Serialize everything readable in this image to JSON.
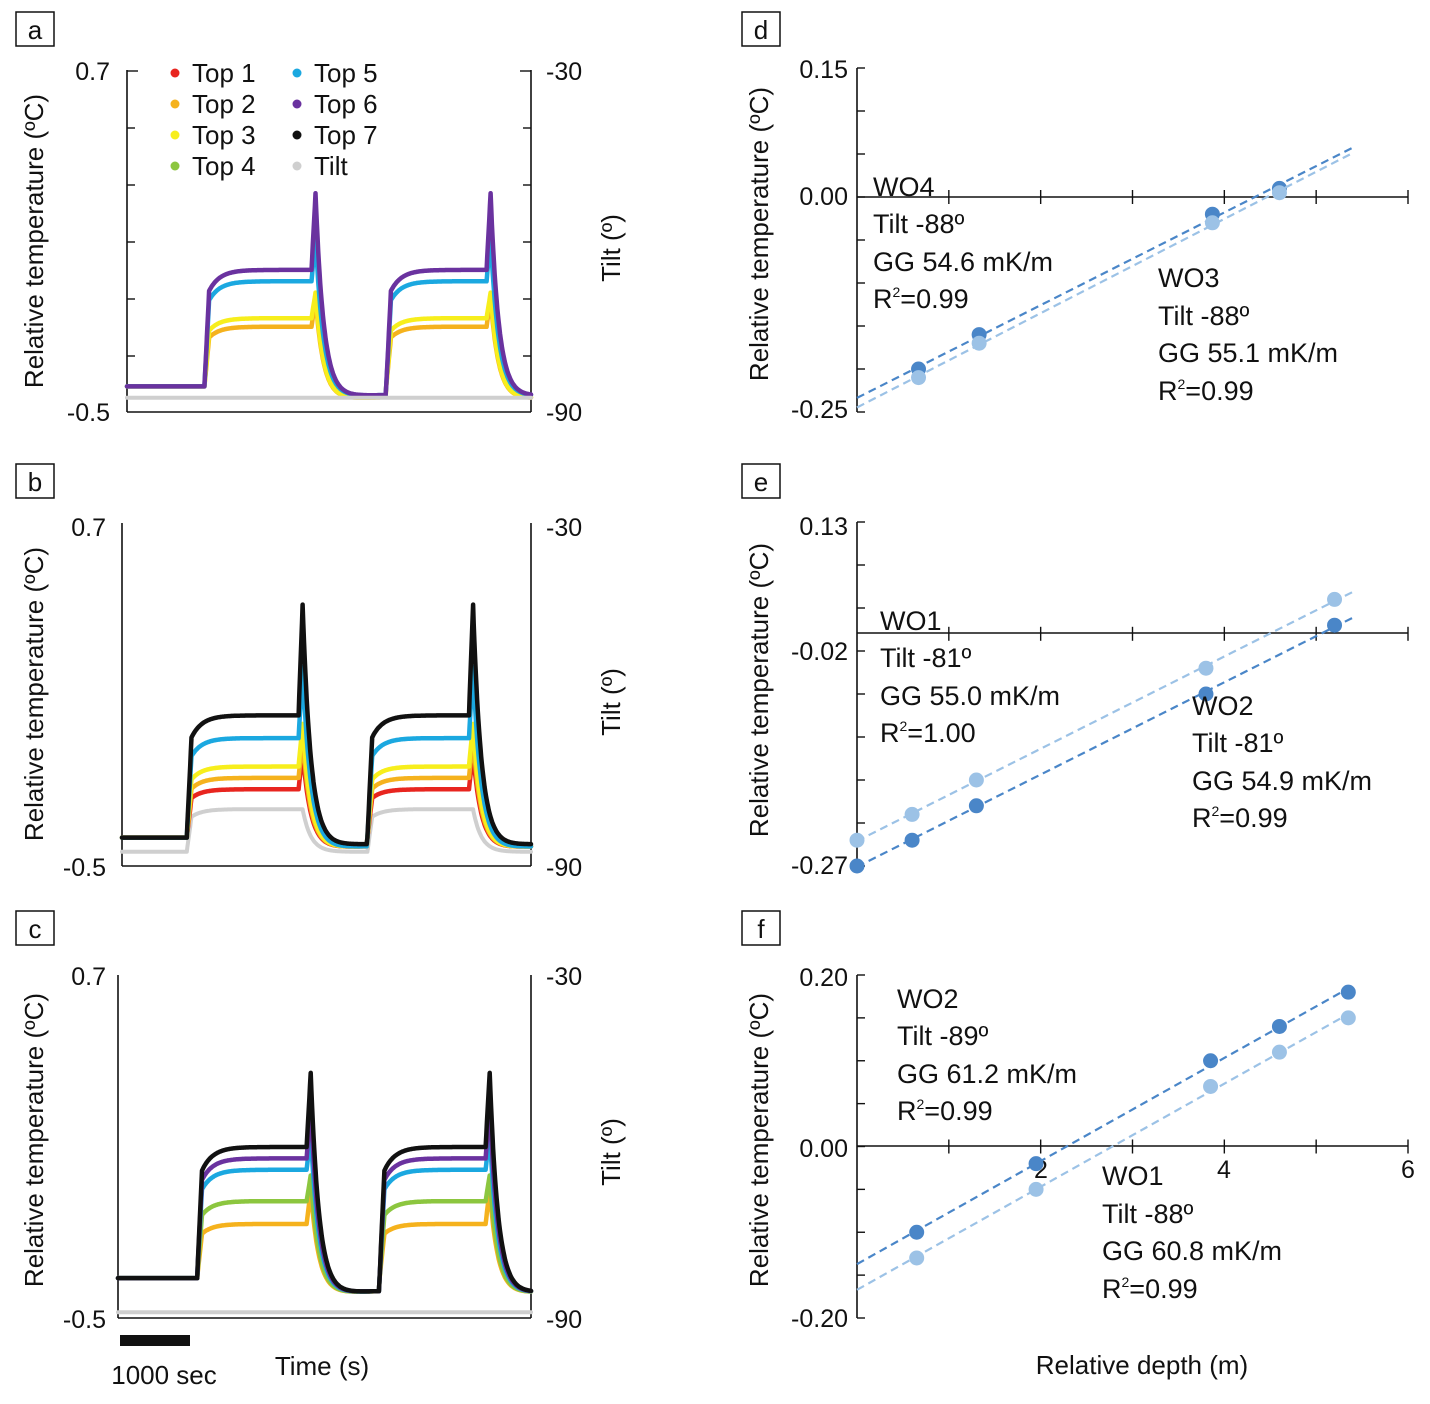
{
  "colors": {
    "top1": "#e8251f",
    "top2": "#f5b21d",
    "top3": "#f7ee1c",
    "top4": "#8cc63f",
    "top5": "#1ba8e0",
    "top6": "#6a329f",
    "top7": "#111111",
    "tilt": "#cfcfcf",
    "fit_dark": "#4a86c8",
    "fit_light": "#9cc2e6"
  },
  "chart_data": [
    {
      "panel": "a",
      "type": "line",
      "xlabel": "",
      "ylabel": "Relative temperature (ºC)",
      "y2label": "Tilt (º)",
      "y_ticks": [
        "0.7",
        "-0.5"
      ],
      "y2_ticks": [
        "-30",
        "-90"
      ],
      "ylim": [
        -0.5,
        0.7
      ],
      "y2lim": [
        -90,
        -30
      ],
      "x_range_sec": [
        0,
        6000
      ],
      "legend": [
        "Top 1",
        "Top 2",
        "Top 3",
        "Top 4",
        "Top 5",
        "Top 6",
        "Top 7",
        "Tilt"
      ],
      "series": [
        {
          "name": "Top 2",
          "key": "top2",
          "baseline": -0.41,
          "plateau": -0.2,
          "peak": -0.1,
          "trough": -0.46
        },
        {
          "name": "Top 3",
          "key": "top3",
          "baseline": -0.41,
          "plateau": -0.17,
          "peak": -0.08,
          "trough": -0.46
        },
        {
          "name": "Top 5",
          "key": "top5",
          "baseline": -0.41,
          "plateau": -0.04,
          "peak": 0.12,
          "trough": -0.45
        },
        {
          "name": "Top 6",
          "key": "top6",
          "baseline": -0.41,
          "plateau": 0.0,
          "peak": 0.27,
          "trough": -0.45
        },
        {
          "name": "Tilt",
          "key": "tilt",
          "baseline": -0.45,
          "plateau": -0.45,
          "peak": -0.45,
          "trough": -0.45
        }
      ],
      "events": {
        "on1": 1150,
        "off1": 2800,
        "on2": 3850,
        "off2": 5400
      }
    },
    {
      "panel": "b",
      "type": "line",
      "xlabel": "",
      "ylabel": "Relative temperature (ºC)",
      "y2label": "Tilt (º)",
      "y_ticks": [
        "0.7",
        "-0.5"
      ],
      "y2_ticks": [
        "-30",
        "-90"
      ],
      "ylim": [
        -0.5,
        0.7
      ],
      "y2lim": [
        -90,
        -30
      ],
      "x_range_sec": [
        0,
        6000
      ],
      "series": [
        {
          "name": "Tilt",
          "key": "tilt",
          "baseline": -0.45,
          "plateau": -0.3,
          "peak": -0.3,
          "trough": -0.45
        },
        {
          "name": "Top 1",
          "key": "top1",
          "baseline": -0.4,
          "plateau": -0.23,
          "peak": -0.1,
          "trough": -0.44
        },
        {
          "name": "Top 2",
          "key": "top2",
          "baseline": -0.4,
          "plateau": -0.19,
          "peak": -0.05,
          "trough": -0.44
        },
        {
          "name": "Top 3",
          "key": "top3",
          "baseline": -0.4,
          "plateau": -0.15,
          "peak": 0.0,
          "trough": -0.44
        },
        {
          "name": "Top 5",
          "key": "top5",
          "baseline": -0.4,
          "plateau": -0.05,
          "peak": 0.2,
          "trough": -0.44
        },
        {
          "name": "Top 7",
          "key": "top7",
          "baseline": -0.4,
          "plateau": 0.03,
          "peak": 0.42,
          "trough": -0.43
        }
      ],
      "events": {
        "on1": 950,
        "off1": 2650,
        "on2": 3600,
        "off2": 5150
      }
    },
    {
      "panel": "c",
      "type": "line",
      "xlabel": "Time (s)",
      "ylabel": "Relative temperature (ºC)",
      "y2label": "Tilt (º)",
      "y_ticks": [
        "0.7",
        "-0.5"
      ],
      "y2_ticks": [
        "-30",
        "-90"
      ],
      "ylim": [
        -0.5,
        0.7
      ],
      "y2lim": [
        -90,
        -30
      ],
      "x_range_sec": [
        0,
        6000
      ],
      "scale_bar": "1000 sec",
      "series": [
        {
          "name": "Tilt",
          "key": "tilt",
          "baseline": -0.48,
          "plateau": -0.48,
          "peak": -0.48,
          "trough": -0.48
        },
        {
          "name": "Top 2",
          "key": "top2",
          "baseline": -0.36,
          "plateau": -0.17,
          "peak": -0.05,
          "trough": -0.42
        },
        {
          "name": "Top 4",
          "key": "top4",
          "baseline": -0.36,
          "plateau": -0.09,
          "peak": 0.0,
          "trough": -0.42
        },
        {
          "name": "Top 5",
          "key": "top5",
          "baseline": -0.36,
          "plateau": 0.02,
          "peak": 0.15,
          "trough": -0.42
        },
        {
          "name": "Top 6",
          "key": "top6",
          "baseline": -0.36,
          "plateau": 0.06,
          "peak": 0.25,
          "trough": -0.42
        },
        {
          "name": "Top 7",
          "key": "top7",
          "baseline": -0.36,
          "plateau": 0.1,
          "peak": 0.36,
          "trough": -0.42
        }
      ],
      "events": {
        "on1": 1150,
        "off1": 2800,
        "on2": 3800,
        "off2": 5400
      }
    },
    {
      "panel": "d",
      "type": "scatter",
      "xlabel": "",
      "ylabel": "Relative temperature (ºC)",
      "ylim": [
        -0.25,
        0.15
      ],
      "xlim": [
        0,
        6
      ],
      "y_ticks": [
        "0.15",
        "0.00",
        "-0.25"
      ],
      "x_ticks": [],
      "fits": [
        {
          "name": "WO4",
          "tilt": "Tilt -88º",
          "gg": "GG 54.6 mK/m",
          "r2": "=0.99",
          "shade": "fit_dark",
          "points": [
            [
              0.67,
              -0.2
            ],
            [
              1.33,
              -0.16
            ],
            [
              3.87,
              -0.02
            ],
            [
              4.6,
              0.01
            ]
          ]
        },
        {
          "name": "WO3",
          "tilt": "Tilt -88º",
          "gg": "GG 55.1 mK/m",
          "r2": "=0.99",
          "shade": "fit_light",
          "points": [
            [
              0.67,
              -0.21
            ],
            [
              1.33,
              -0.17
            ],
            [
              3.87,
              -0.03
            ],
            [
              4.6,
              0.005
            ]
          ]
        }
      ]
    },
    {
      "panel": "e",
      "type": "scatter",
      "xlabel": "",
      "ylabel": "Relative temperature (ºC)",
      "ylim": [
        -0.27,
        0.13
      ],
      "xlim": [
        0,
        6
      ],
      "y_ticks": [
        "0.13",
        "-0.02",
        "-0.27"
      ],
      "x_ticks": [],
      "fits": [
        {
          "name": "WO1",
          "tilt": "Tilt -81º",
          "gg": "GG 55.0 mK/m",
          "r2": "=1.00",
          "shade": "fit_light",
          "points": [
            [
              0.0,
              -0.24
            ],
            [
              0.6,
              -0.21
            ],
            [
              1.3,
              -0.17
            ],
            [
              3.8,
              -0.04
            ],
            [
              5.2,
              0.04
            ]
          ]
        },
        {
          "name": "WO2",
          "tilt": "Tilt -81º",
          "gg": "GG 54.9 mK/m",
          "r2": "=0.99",
          "shade": "fit_dark",
          "points": [
            [
              0.0,
              -0.27
            ],
            [
              0.6,
              -0.24
            ],
            [
              1.3,
              -0.2
            ],
            [
              3.8,
              -0.07
            ],
            [
              5.2,
              0.01
            ]
          ]
        }
      ]
    },
    {
      "panel": "f",
      "type": "scatter",
      "xlabel": "Relative depth (m)",
      "ylabel": "Relative temperature (ºC)",
      "ylim": [
        -0.2,
        0.2
      ],
      "xlim": [
        0,
        6
      ],
      "y_ticks": [
        "0.20",
        "0.00",
        "-0.20"
      ],
      "x_ticks": [
        "2",
        "4",
        "6"
      ],
      "fits": [
        {
          "name": "WO2",
          "tilt": "Tilt -89º",
          "gg": "GG 61.2 mK/m",
          "r2": "=0.99",
          "shade": "fit_dark",
          "points": [
            [
              0.65,
              -0.1
            ],
            [
              1.95,
              -0.02
            ],
            [
              3.85,
              0.1
            ],
            [
              4.6,
              0.14
            ],
            [
              5.35,
              0.18
            ]
          ]
        },
        {
          "name": "WO1",
          "tilt": "Tilt -88º",
          "gg": "GG 60.8 mK/m",
          "r2": "=0.99",
          "shade": "fit_light",
          "points": [
            [
              0.65,
              -0.13
            ],
            [
              1.95,
              -0.05
            ],
            [
              3.85,
              0.07
            ],
            [
              4.6,
              0.11
            ],
            [
              5.35,
              0.15
            ]
          ]
        }
      ]
    }
  ]
}
